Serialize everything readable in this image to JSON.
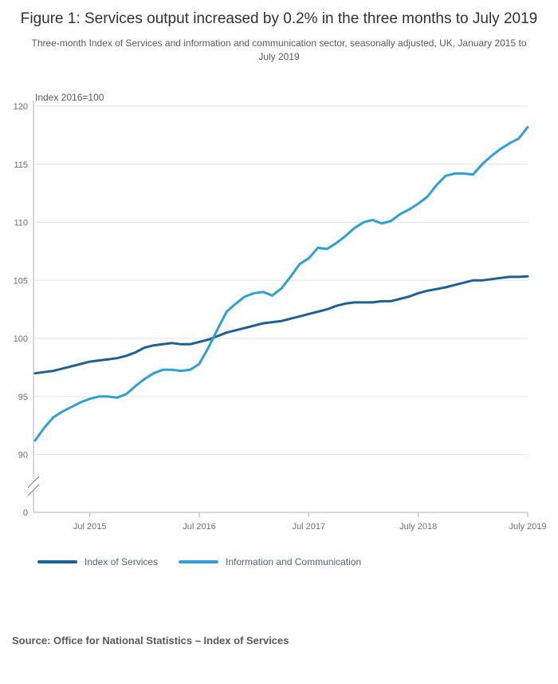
{
  "header": {
    "title": "Figure 1: Services output increased by 0.2% in the three months to July 2019",
    "subtitle": "Three-month Index of Services and information and communication sector, seasonally adjusted, UK, January 2015 to July 2019"
  },
  "chart_data": {
    "type": "line",
    "unit_label": "Index 2016=100",
    "x_start_label": "January 2015",
    "x_end_label": "July 2019",
    "x_points": 55,
    "x_tick_labels": [
      "Jul 2015",
      "Jul 2016",
      "Jul 2017",
      "July 2018",
      "July 2019"
    ],
    "x_tick_month_indices": [
      6,
      18,
      30,
      42,
      54
    ],
    "y_ticks": [
      120,
      115,
      110,
      105,
      100,
      95,
      90
    ],
    "y_baseline_label": "0",
    "y_axis_break": true,
    "grid": "horizontal",
    "legend_position": "bottom-left",
    "colors": {
      "grid": "#e6e6e6",
      "axis": "#b3b3b3",
      "tick_text": "#707070"
    },
    "series": [
      {
        "name": "Index of Services",
        "color": "#205F94",
        "values": [
          97.0,
          97.1,
          97.2,
          97.4,
          97.6,
          97.8,
          98.0,
          98.1,
          98.2,
          98.3,
          98.5,
          98.8,
          99.2,
          99.4,
          99.5,
          99.6,
          99.5,
          99.5,
          99.7,
          99.9,
          100.2,
          100.5,
          100.7,
          100.9,
          101.1,
          101.3,
          101.4,
          101.5,
          101.7,
          101.9,
          102.1,
          102.3,
          102.5,
          102.8,
          103.0,
          103.1,
          103.1,
          103.1,
          103.2,
          103.2,
          103.4,
          103.6,
          103.9,
          104.1,
          104.25,
          104.4,
          104.6,
          104.8,
          105.0,
          105.0,
          105.1,
          105.2,
          105.3,
          105.3,
          105.35
        ]
      },
      {
        "name": "Information and Communication",
        "color": "#2FA0D6",
        "values": [
          91.2,
          92.3,
          93.2,
          93.7,
          94.1,
          94.5,
          94.8,
          95.0,
          95.0,
          94.9,
          95.2,
          95.9,
          96.5,
          97.0,
          97.3,
          97.3,
          97.2,
          97.3,
          97.8,
          99.2,
          100.8,
          102.3,
          103.0,
          103.6,
          103.9,
          104.0,
          103.7,
          104.3,
          105.3,
          106.4,
          106.9,
          107.8,
          107.7,
          108.2,
          108.8,
          109.5,
          110.0,
          110.2,
          109.9,
          110.1,
          110.7,
          111.1,
          111.6,
          112.2,
          113.2,
          114.0,
          114.2,
          114.2,
          114.1,
          115.0,
          115.7,
          116.3,
          116.8,
          117.2,
          118.2
        ]
      }
    ]
  },
  "footer": {
    "source": "Source: Office for National Statistics – Index of Services"
  }
}
